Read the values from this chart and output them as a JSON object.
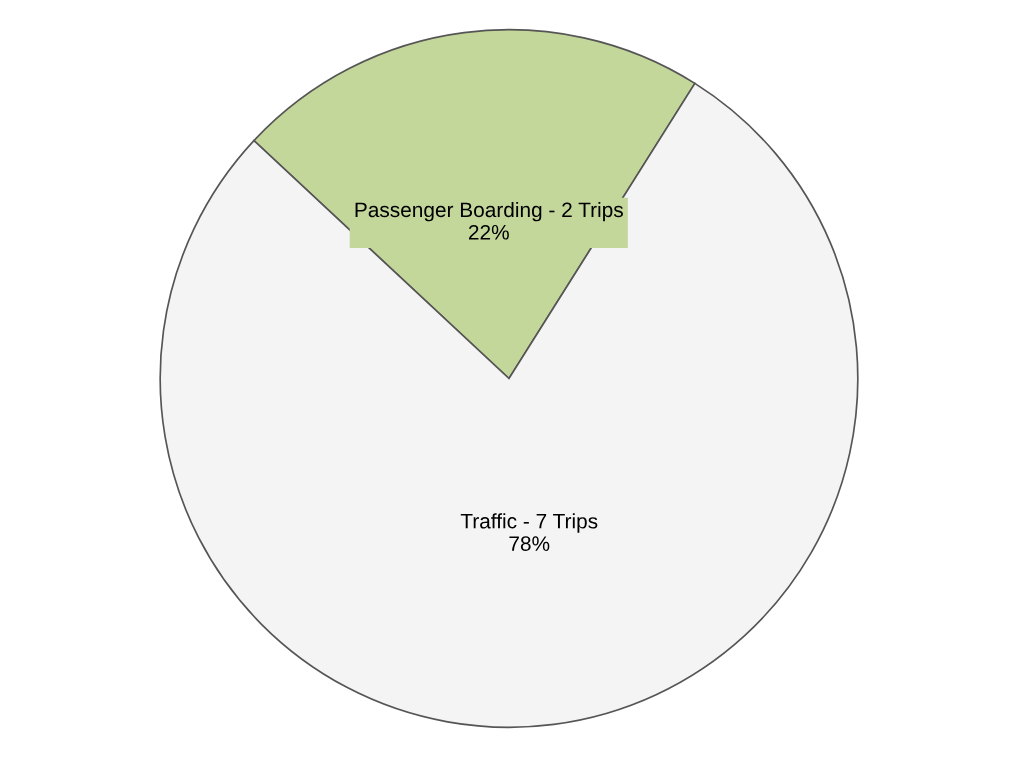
{
  "chart_data": {
    "type": "pie",
    "categories": [
      "Passenger Boarding - 2 Trips",
      "Traffic - 7 Trips"
    ],
    "values": [
      22,
      78
    ],
    "colors": [
      "#c4d79b",
      "#f4f4f4"
    ],
    "value_labels": [
      "22%",
      "78%"
    ],
    "legend": false
  }
}
